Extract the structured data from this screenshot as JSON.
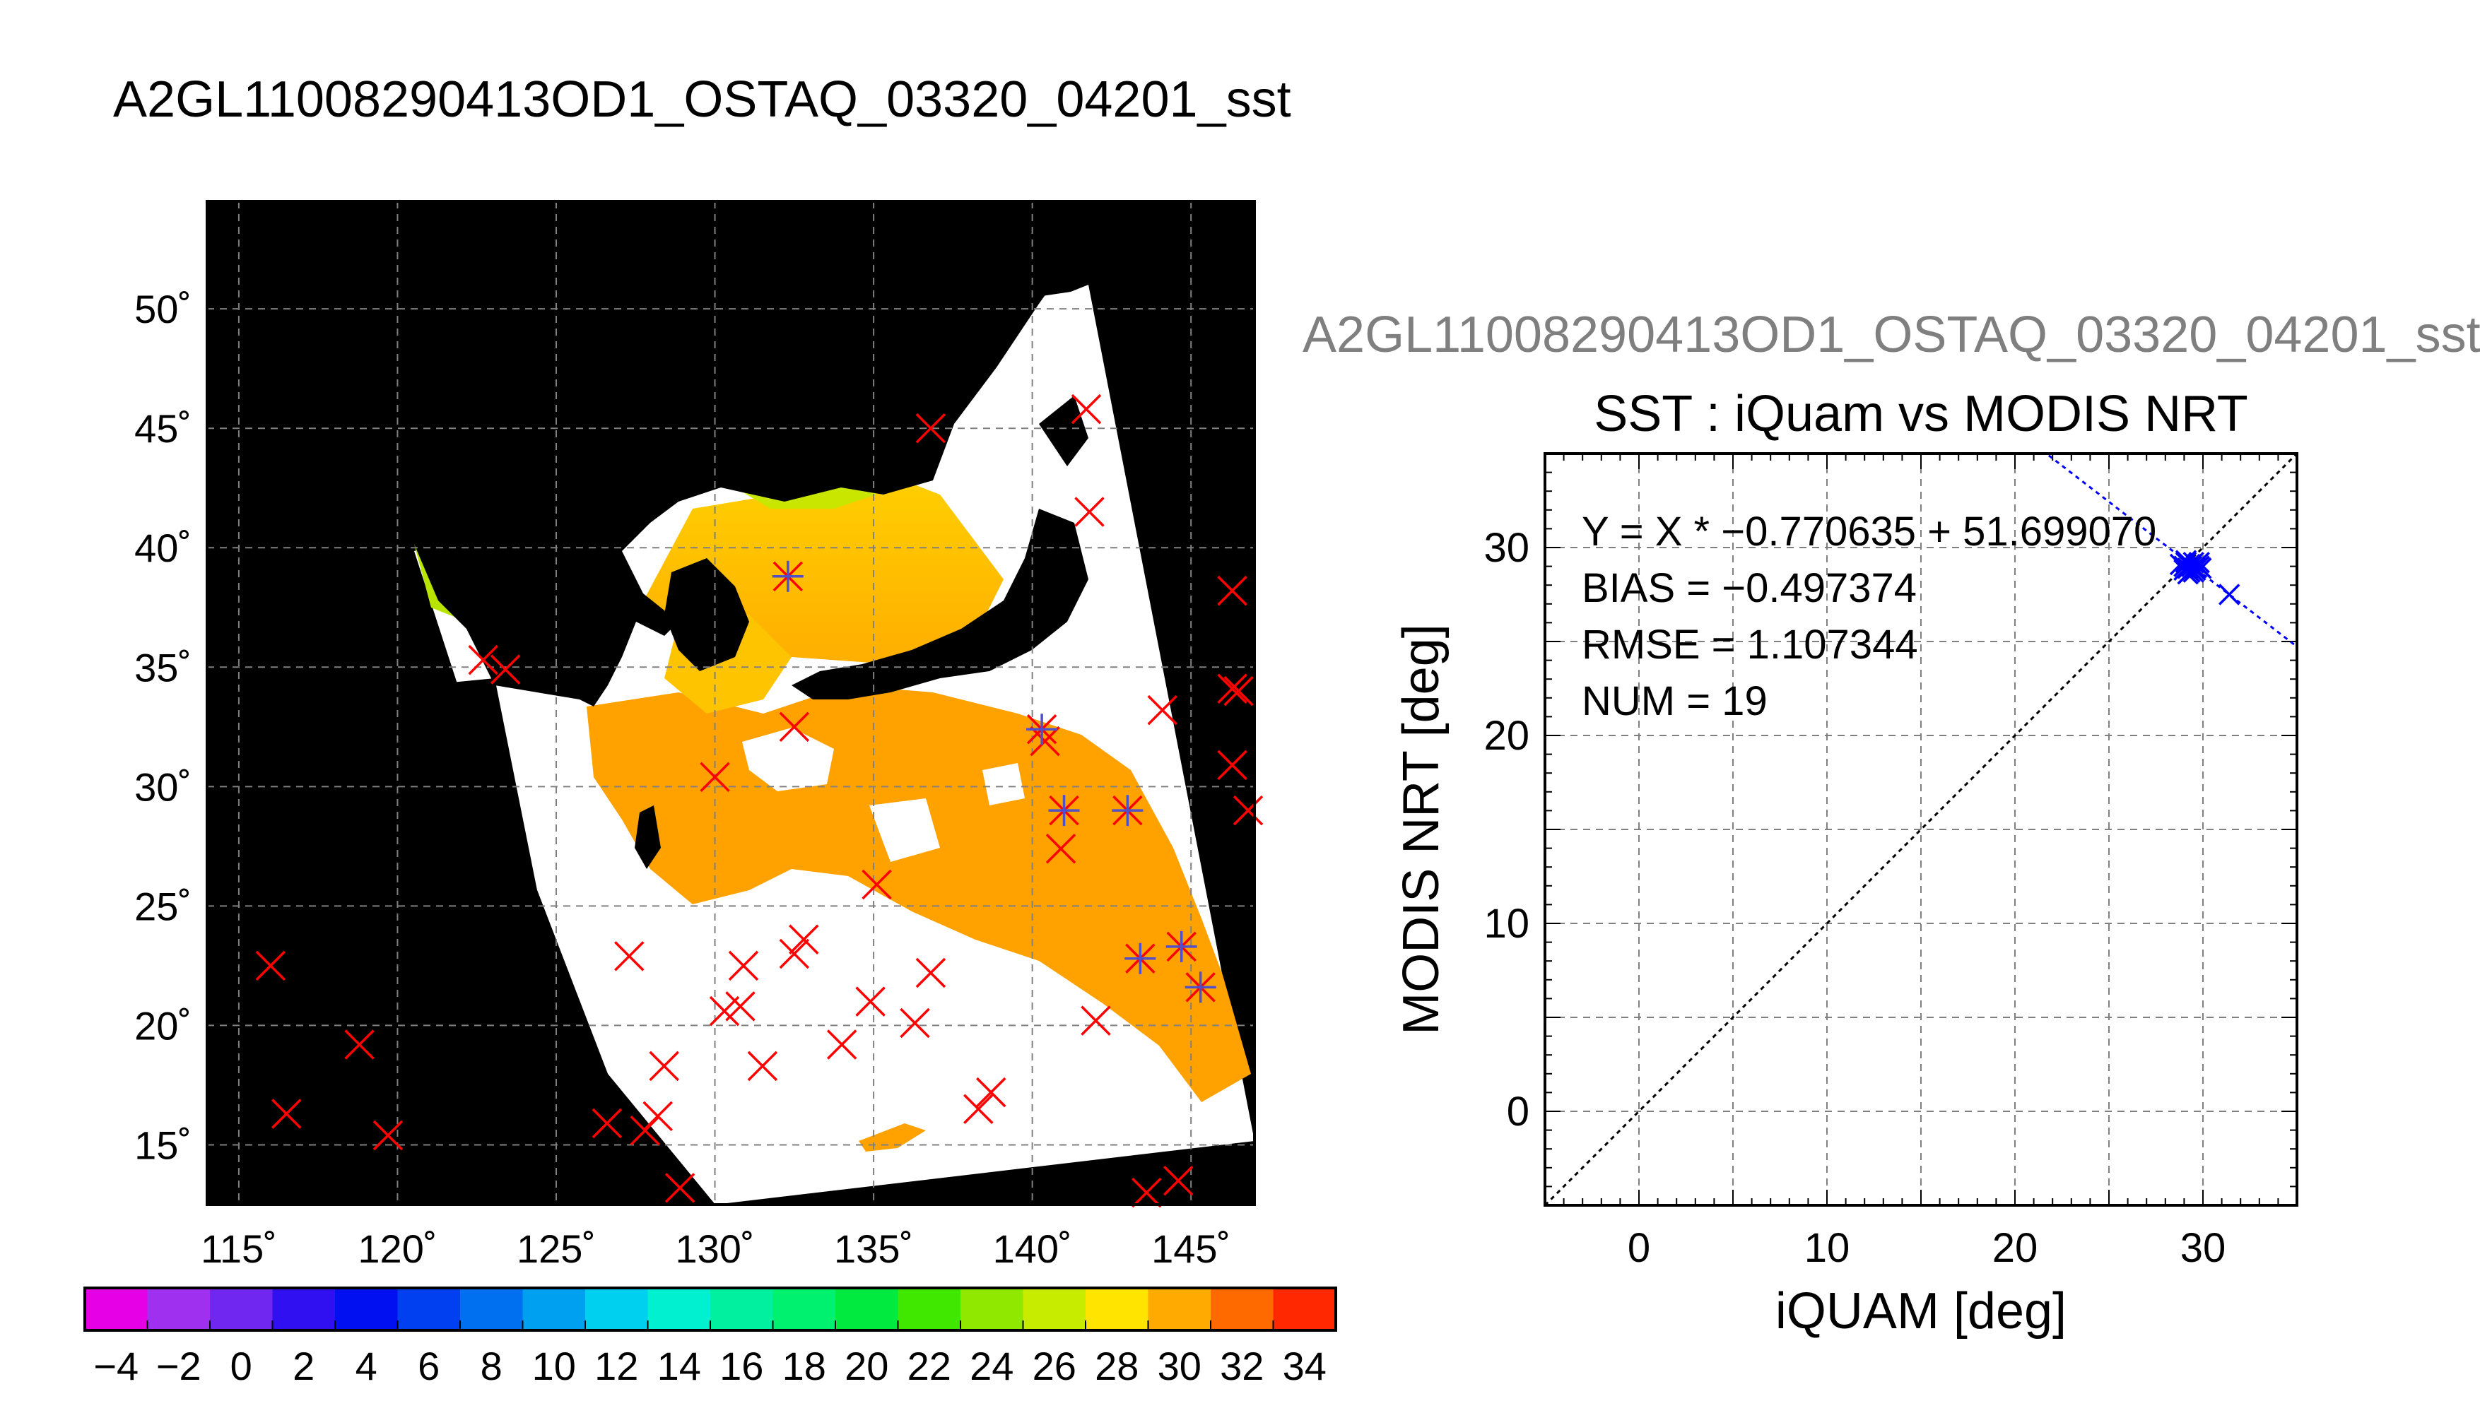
{
  "page": {
    "main_title": "A2GL11008290413OD1_OSTAQ_03320_04201_sst",
    "scatter_overtitle": "A2GL11008290413OD1_OSTAQ_03320_04201_sst"
  },
  "colors": {
    "background": "#ffffff",
    "land": "#000000",
    "cloud": "#ffffff",
    "iquam_marker": "#ff0000",
    "matched_marker": "#5050c8",
    "scatter_marker": "#0000ff",
    "overtitle_gray": "#7f7f7f",
    "grid": "#7f7f7f"
  },
  "chart_data": [
    {
      "type": "heatmap",
      "name": "sst-map",
      "xlim": [
        114,
        147
      ],
      "ylim": [
        12.5,
        54.5
      ],
      "x_ticks": [
        115,
        120,
        125,
        130,
        135,
        140,
        145
      ],
      "x_tick_labels": [
        "115˚",
        "120˚",
        "125˚",
        "130˚",
        "135˚",
        "140˚",
        "145˚"
      ],
      "y_ticks": [
        15,
        20,
        25,
        30,
        35,
        40,
        45,
        50
      ],
      "y_tick_labels": [
        "15˚",
        "20˚",
        "25˚",
        "30˚",
        "35˚",
        "40˚",
        "45˚",
        "50˚"
      ],
      "iquam_points": [
        [
          116,
          22.5
        ],
        [
          116.5,
          16.3
        ],
        [
          118.8,
          19.2
        ],
        [
          119.7,
          15.4
        ],
        [
          122.7,
          35.3
        ],
        [
          123.4,
          34.9
        ],
        [
          126.6,
          15.9
        ],
        [
          127.3,
          22.9
        ],
        [
          127.8,
          15.6
        ],
        [
          128.2,
          16.2
        ],
        [
          128.4,
          18.3
        ],
        [
          128.9,
          13.2
        ],
        [
          130,
          30.4
        ],
        [
          130.8,
          20.8
        ],
        [
          130.9,
          22.5
        ],
        [
          130.3,
          20.6
        ],
        [
          131.5,
          18.3
        ],
        [
          132.3,
          38.8
        ],
        [
          132.5,
          23
        ],
        [
          132.5,
          32.5
        ],
        [
          132.8,
          23.6
        ],
        [
          134,
          19.2
        ],
        [
          134.9,
          21
        ],
        [
          135.1,
          25.9
        ],
        [
          136.3,
          20.1
        ],
        [
          136.8,
          45
        ],
        [
          136.8,
          22.2
        ],
        [
          138.3,
          16.5
        ],
        [
          138.7,
          17.2
        ],
        [
          140.3,
          32.4
        ],
        [
          140.4,
          31.9
        ],
        [
          141,
          29
        ],
        [
          140.9,
          27.4
        ],
        [
          141.7,
          45.8
        ],
        [
          141.8,
          41.5
        ],
        [
          142,
          20.2
        ],
        [
          143,
          29
        ],
        [
          143.4,
          22.8
        ],
        [
          143.6,
          13
        ],
        [
          144.1,
          33.2
        ],
        [
          144.7,
          23.3
        ],
        [
          144.6,
          13.5
        ],
        [
          145.3,
          21.6
        ],
        [
          146.3,
          38.2
        ],
        [
          146.3,
          34.1
        ],
        [
          146.5,
          34
        ],
        [
          146.3,
          30.9
        ],
        [
          146.8,
          29
        ]
      ],
      "matched_points": [
        [
          132.3,
          38.8
        ],
        [
          140.3,
          32.4
        ],
        [
          141,
          29
        ],
        [
          143,
          29
        ],
        [
          143.4,
          22.8
        ],
        [
          144.7,
          23.3
        ],
        [
          145.3,
          21.6
        ]
      ],
      "colorbar": {
        "min": -5,
        "max": 35,
        "step": 2,
        "tick_values": [
          -4,
          -2,
          0,
          2,
          4,
          6,
          8,
          10,
          12,
          14,
          16,
          18,
          20,
          22,
          24,
          26,
          28,
          30,
          32,
          34
        ],
        "tick_labels": [
          "−4",
          "−2",
          "0",
          "2",
          "4",
          "6",
          "8",
          "10",
          "12",
          "14",
          "16",
          "18",
          "20",
          "22",
          "24",
          "26",
          "28",
          "30",
          "32",
          "34"
        ],
        "colors": [
          "#e600e6",
          "#a030f0",
          "#7028f0",
          "#3010f0",
          "#0010f0",
          "#0040f0",
          "#0070f0",
          "#00a0f0",
          "#00d0f0",
          "#00f0d0",
          "#00f0a0",
          "#00f070",
          "#00ea40",
          "#40e800",
          "#90e800",
          "#c8ec00",
          "#ffe400",
          "#ffaa00",
          "#ff6a00",
          "#ff2800"
        ]
      }
    },
    {
      "type": "scatter",
      "name": "sst-scatter",
      "title": "SST : iQuam vs MODIS NRT",
      "xlabel": "iQUAM [deg]",
      "ylabel": "MODIS NRT [deg]",
      "xlim": [
        -5,
        35
      ],
      "ylim": [
        -5,
        35
      ],
      "x_ticks": [
        0,
        10,
        20,
        30
      ],
      "x_tick_labels": [
        "0",
        "10",
        "20",
        "30"
      ],
      "y_ticks": [
        0,
        10,
        20,
        30
      ],
      "y_tick_labels": [
        "0",
        "10",
        "20",
        "30"
      ],
      "grid_step": 5,
      "stats": [
        "Y = X * −0.770635 + 51.699070",
        "BIAS = −0.497374",
        "RMSE = 1.107344",
        "NUM = 19"
      ],
      "fit": {
        "slope": -0.770635,
        "intercept": 51.69907
      },
      "one_to_one": true,
      "points": [
        [
          28.8,
          29.1
        ],
        [
          29,
          29
        ],
        [
          29.1,
          29.2
        ],
        [
          29.2,
          28.9
        ],
        [
          29.3,
          29.1
        ],
        [
          29.4,
          29
        ],
        [
          29.5,
          29.2
        ],
        [
          29.6,
          28.9
        ],
        [
          29.7,
          29.1
        ],
        [
          29.8,
          29
        ],
        [
          29,
          28.8
        ],
        [
          29.3,
          28.7
        ],
        [
          29.6,
          28.8
        ],
        [
          29.9,
          28.9
        ],
        [
          29.1,
          29.3
        ],
        [
          29.5,
          28.7
        ],
        [
          31.4,
          27.5
        ],
        [
          29.2,
          28.6
        ],
        [
          29.8,
          29.2
        ]
      ]
    }
  ]
}
